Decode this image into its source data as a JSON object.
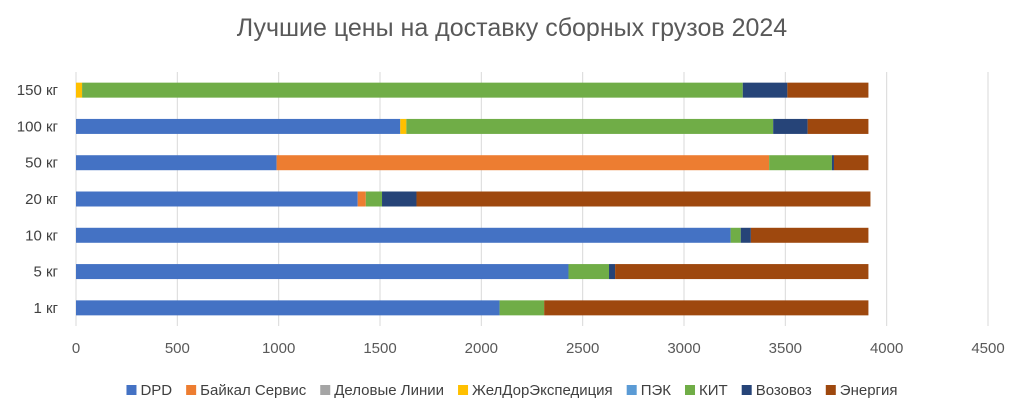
{
  "chart_data": {
    "type": "bar",
    "orientation": "horizontal",
    "stacked": true,
    "title": "Лучшие цены на доставку сборных грузов 2024",
    "xlabel": "",
    "ylabel": "",
    "xlim": [
      0,
      4500
    ],
    "xticks": [
      "0",
      "500",
      "1000",
      "1500",
      "2000",
      "2500",
      "3000",
      "3500",
      "4000",
      "4500"
    ],
    "grid": "vertical",
    "legend_position": "bottom",
    "categories": [
      "1 кг",
      "5 кг",
      "10 кг",
      "20 кг",
      "50 кг",
      "100 кг",
      "150 кг"
    ],
    "series": [
      {
        "name": "DPD",
        "color": "#4472C4",
        "values": [
          2090,
          2430,
          3230,
          1390,
          990,
          1600,
          0
        ]
      },
      {
        "name": "Байкал Сервис",
        "color": "#ED7D31",
        "values": [
          0,
          0,
          0,
          40,
          2430,
          0,
          0
        ]
      },
      {
        "name": "Деловые Линии",
        "color": "#A5A5A5",
        "values": [
          0,
          0,
          0,
          0,
          0,
          0,
          0
        ]
      },
      {
        "name": "ЖелДорЭкспедиция",
        "color": "#FFC000",
        "values": [
          0,
          0,
          0,
          0,
          0,
          30,
          30
        ]
      },
      {
        "name": "ПЭК",
        "color": "#5B9BD5",
        "values": [
          0,
          0,
          0,
          0,
          0,
          0,
          0
        ]
      },
      {
        "name": "КИТ",
        "color": "#70AD47",
        "values": [
          220,
          200,
          50,
          80,
          310,
          1810,
          3260
        ]
      },
      {
        "name": "Возовоз",
        "color": "#264478",
        "values": [
          0,
          30,
          50,
          170,
          10,
          170,
          220
        ]
      },
      {
        "name": "Энергия",
        "color": "#9E480E",
        "values": [
          1600,
          1250,
          580,
          2240,
          170,
          300,
          400
        ]
      }
    ]
  }
}
